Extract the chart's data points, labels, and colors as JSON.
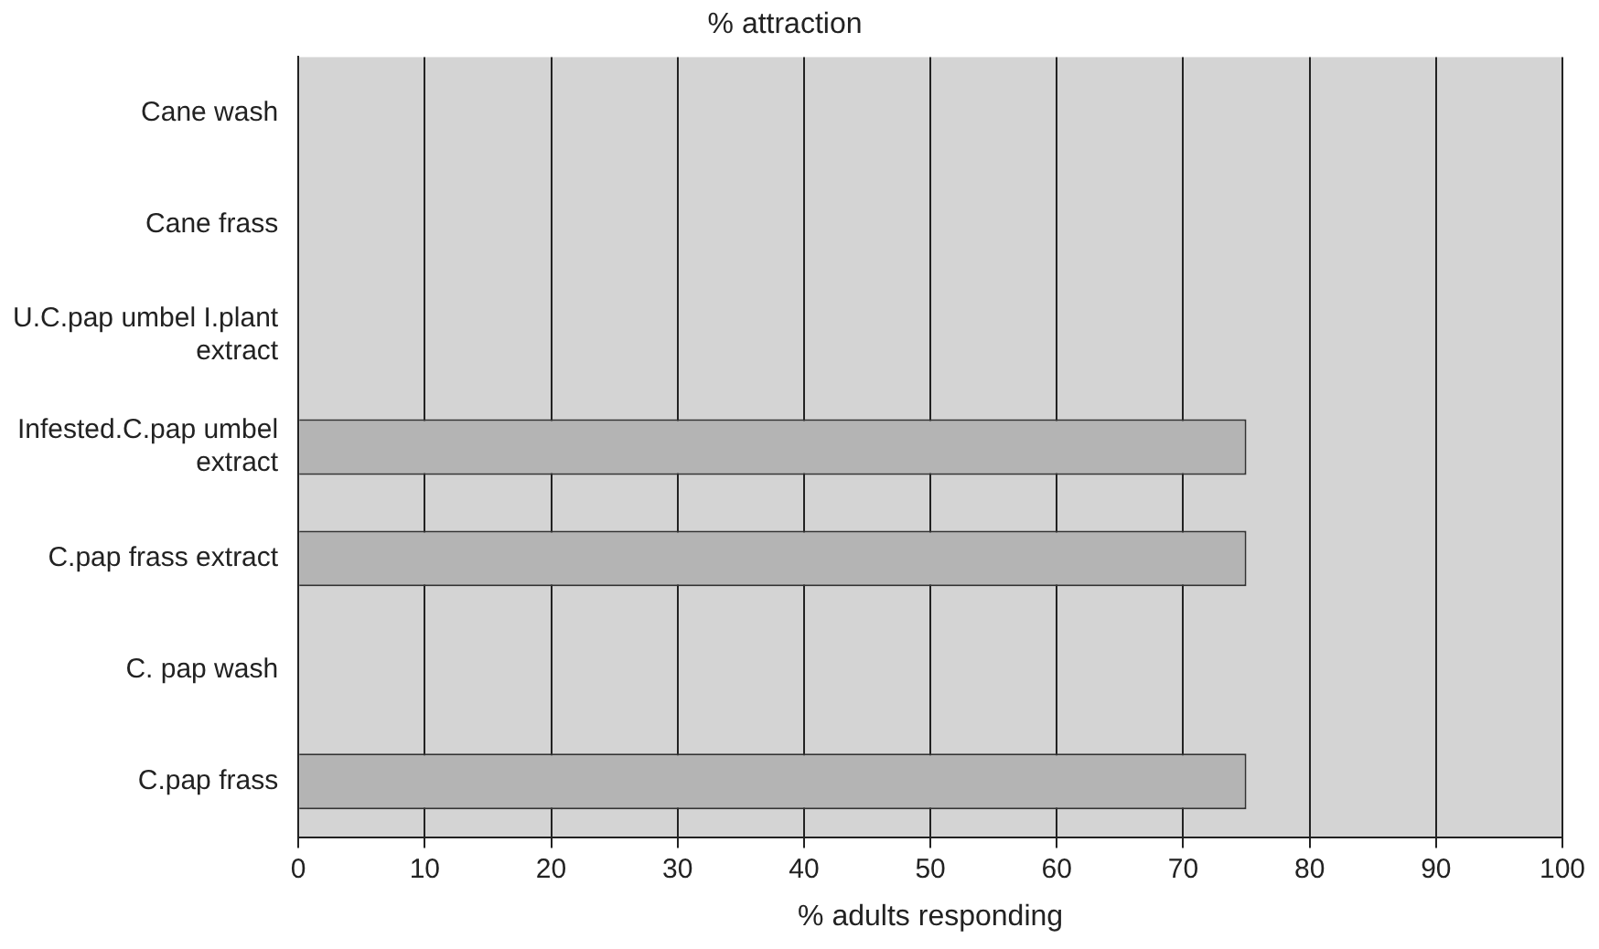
{
  "chart_data": {
    "type": "bar",
    "orientation": "horizontal",
    "title": "% attraction",
    "xlabel": "% adults responding",
    "categories": [
      "Cane wash",
      "Cane frass",
      "U.C.pap umbel I.plant extract",
      "Infested.C.pap umbel extract",
      "C.pap frass extract",
      "C. pap wash",
      "C.pap frass"
    ],
    "values": [
      0,
      0,
      0,
      75,
      75,
      0,
      75
    ],
    "color": "#b4b4b4",
    "xlim": [
      0,
      100
    ],
    "xticks": [
      0,
      10,
      20,
      30,
      40,
      50,
      60,
      70,
      80,
      90,
      100
    ],
    "grid": "x",
    "legend": false
  }
}
